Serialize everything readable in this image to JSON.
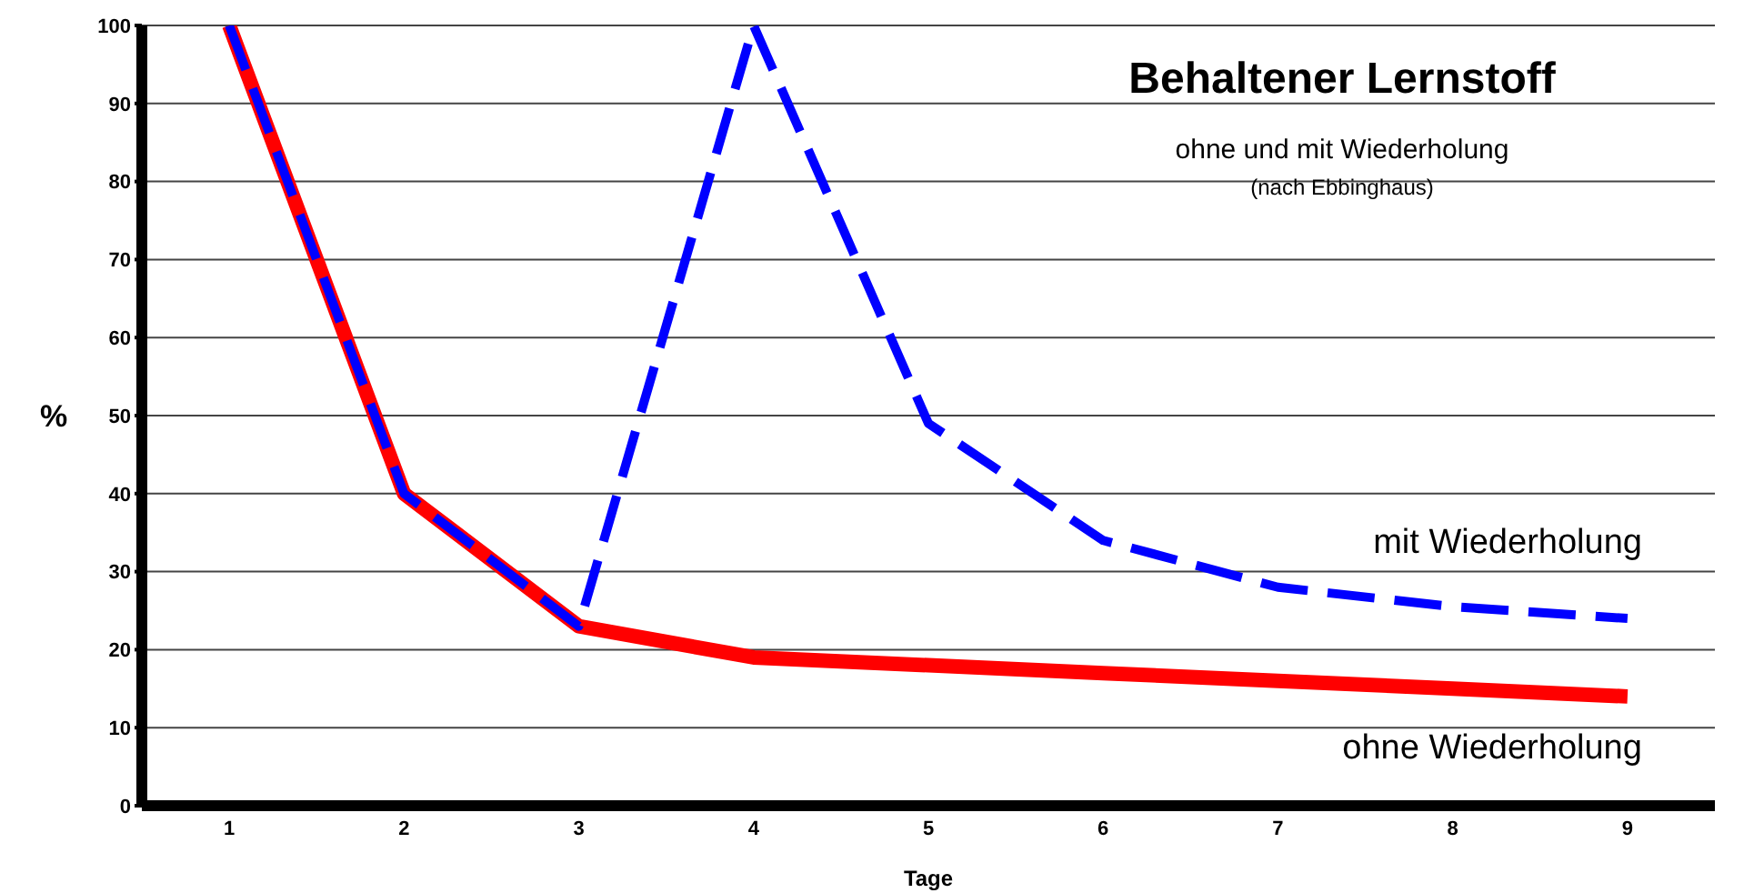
{
  "chart_data": {
    "type": "line",
    "title": "Behaltener Lernstoff",
    "subtitle": "ohne und mit Wiederholung",
    "annotations": [
      "(nach Ebbinghaus)"
    ],
    "xlabel": "Tage",
    "ylabel": "%",
    "categories": [
      "1",
      "2",
      "3",
      "4",
      "5",
      "6",
      "7",
      "8",
      "9"
    ],
    "series": [
      {
        "name": "mit Wiederholung",
        "color": "#0000ff",
        "line_style": "dashed",
        "values": [
          100,
          40,
          23,
          100,
          49,
          34,
          28,
          25.5,
          24
        ]
      },
      {
        "name": "ohne Wiederholung",
        "color": "#ff0000",
        "line_style": "solid",
        "values": [
          100,
          40,
          23,
          19,
          18,
          17,
          16,
          15,
          14
        ]
      }
    ],
    "ylim": [
      0,
      100
    ],
    "yticks": [
      0,
      10,
      20,
      30,
      40,
      50,
      60,
      70,
      80,
      90,
      100
    ],
    "grid": "y",
    "marker": "none"
  }
}
